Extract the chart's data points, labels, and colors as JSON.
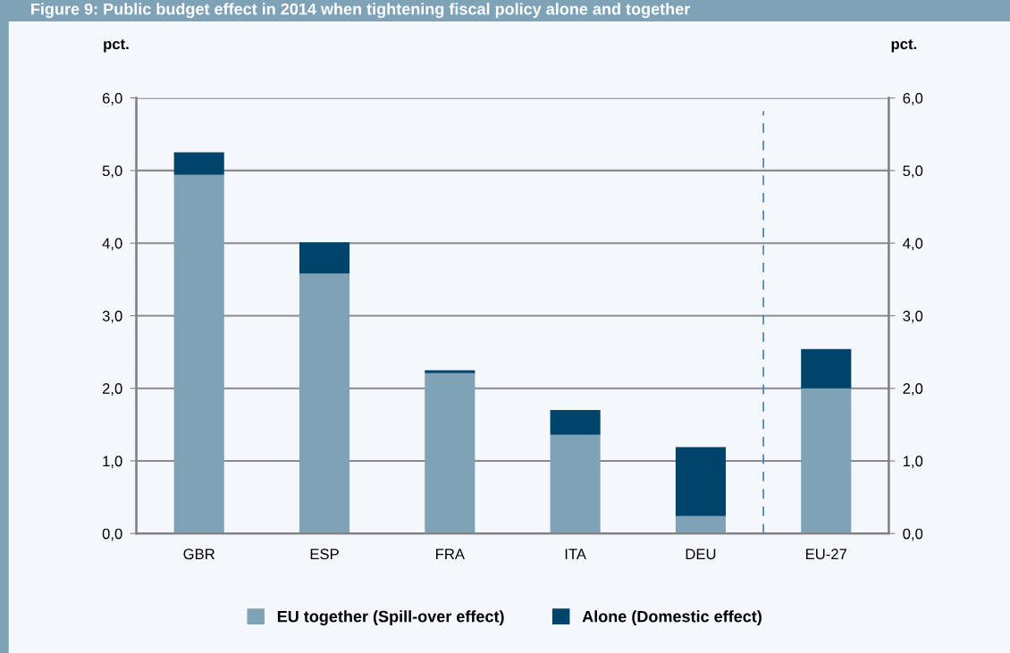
{
  "chart_data": {
    "type": "bar",
    "title": "Figure 9: Public budget effect in 2014 when tightening fiscal policy alone and together",
    "ylabel": "pct.",
    "y2label": "pct.",
    "categories": [
      "GBR",
      "ESP",
      "FRA",
      "ITA",
      "DEU",
      "EU-27"
    ],
    "stacked": true,
    "series": [
      {
        "name": "EU together (Spill-over effect)",
        "color": "#7fa2b6",
        "values": [
          4.94,
          3.58,
          2.21,
          1.36,
          0.24,
          2.0
        ]
      },
      {
        "name": "Alone (Domestic effect)",
        "color": "#00436b",
        "values": [
          0.31,
          0.43,
          0.04,
          0.34,
          0.95,
          0.54
        ]
      }
    ],
    "ylim": [
      0,
      6
    ],
    "yticks": [
      {
        "value": 0,
        "label": "0,0"
      },
      {
        "value": 1,
        "label": "1,0"
      },
      {
        "value": 2,
        "label": "2,0"
      },
      {
        "value": 3,
        "label": "3,0"
      },
      {
        "value": 4,
        "label": "4,0"
      },
      {
        "value": 5,
        "label": "5,0"
      },
      {
        "value": 6,
        "label": "6,0"
      }
    ],
    "y2lim": [
      0,
      6
    ],
    "y2ticks": [
      {
        "value": 0,
        "label": "0,0"
      },
      {
        "value": 1,
        "label": "1,0"
      },
      {
        "value": 2,
        "label": "2,0"
      },
      {
        "value": 3,
        "label": "3,0"
      },
      {
        "value": 4,
        "label": "4,0"
      },
      {
        "value": 5,
        "label": "5,0"
      },
      {
        "value": 6,
        "label": "6,0"
      }
    ],
    "grid": "y",
    "legend": "bottom"
  }
}
